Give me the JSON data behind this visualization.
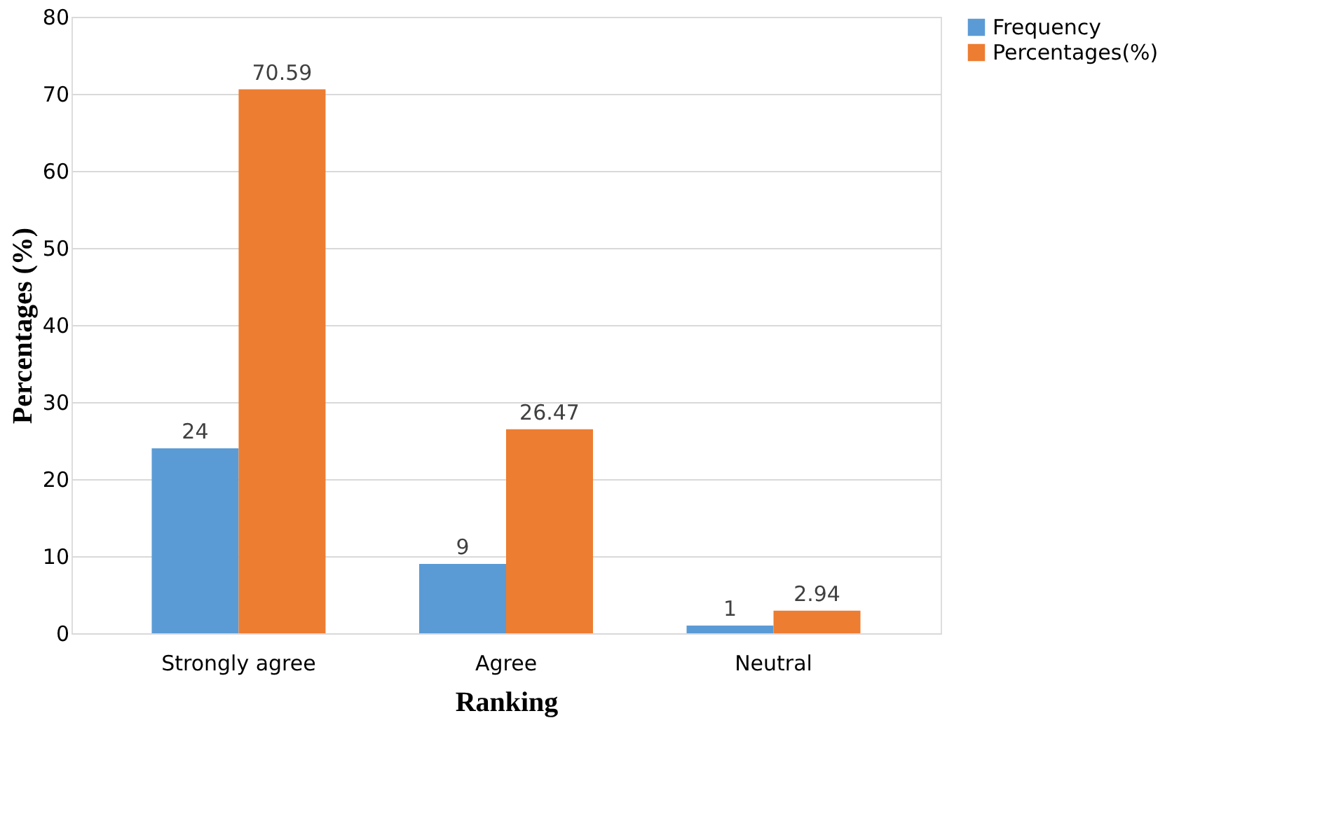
{
  "chart_data": {
    "type": "bar",
    "xlabel": "Ranking",
    "ylabel": "Percentages (%)",
    "categories": [
      "Strongly agree",
      "Agree",
      "Neutral"
    ],
    "series": [
      {
        "name": "Frequency",
        "color": "#5b9bd5",
        "values": [
          24,
          9,
          1
        ]
      },
      {
        "name": "Percentages(%)",
        "color": "#ed7d31",
        "values": [
          70.59,
          26.47,
          2.94
        ]
      }
    ],
    "ylim": [
      0,
      80
    ],
    "yticks": [
      0,
      10,
      20,
      30,
      40,
      50,
      60,
      70,
      80
    ],
    "grid": "y",
    "legend": "right",
    "data_labels": true
  }
}
